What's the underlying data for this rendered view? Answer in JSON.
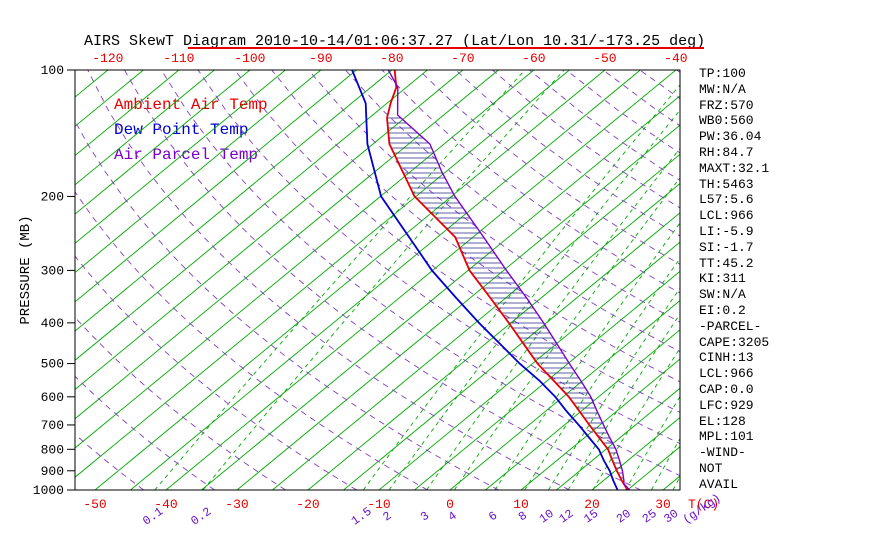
{
  "title": "AIRS SkewT Diagram 2010-10-14/01:06:37.27 (Lat/Lon 10.31/-173.25 deg)",
  "colors": {
    "ambient": "#e60000",
    "dewpoint": "#0000cc",
    "parcel": "#7a00cc",
    "isotherm_green": "#00aa00",
    "adiabat_purple": "#8040c0",
    "mixing_label_purple": "#6611cc",
    "axis_red": "#e60000",
    "hatch": "#2a2a8c",
    "axis_black": "#000000"
  },
  "legend": {
    "items": [
      {
        "label": "Ambient Air Temp",
        "color_key": "ambient"
      },
      {
        "label": "Dew Point Temp",
        "color_key": "dewpoint"
      },
      {
        "label": "Air Parcel Temp",
        "color_key": "parcel"
      }
    ]
  },
  "axes": {
    "pressure_axis_label": "PRESSURE (MB)",
    "pressure_ticks": [
      100,
      200,
      300,
      400,
      500,
      600,
      700,
      800,
      900,
      1000
    ],
    "top_temperature_ticks": [
      -120,
      -110,
      -100,
      -90,
      -80,
      -70,
      -60,
      -50,
      -40
    ],
    "bottom_temperature_ticks": [
      -50,
      -40,
      -30,
      -20,
      -10,
      0,
      10,
      20,
      30
    ],
    "temperature_unit_label": "T(C)",
    "mixing_ratio_ticks": [
      0.1,
      0.2,
      1.5,
      2,
      3,
      4,
      6,
      8,
      10,
      12,
      15,
      20,
      25,
      30
    ],
    "mixing_ratio_unit_label": "(g/kg)"
  },
  "indices_panel": {
    "lines": [
      "TP:100",
      "MW:N/A",
      "FRZ:570",
      "WB0:560",
      "PW:36.04",
      "RH:84.7",
      "MAXT:32.1",
      "TH:5463",
      "L57:5.6",
      "LCL:966",
      "LI:-5.9",
      "SI:-1.7",
      "TT:45.2",
      "KI:311",
      "SW:N/A",
      "EI:0.2",
      "-PARCEL-",
      "CAPE:3205",
      "CINH:13",
      "LCL:966",
      "CAP:0.0",
      "LFC:929",
      "EL:128",
      "MPL:101",
      "-WIND-",
      "NOT",
      "AVAIL"
    ]
  },
  "chart_data": {
    "type": "line",
    "chart_kind": "skew-t log-p thermodynamic diagram",
    "title": "AIRS SkewT Diagram 2010-10-14/01:06:37.27 (Lat/Lon 10.31/-173.25 deg)",
    "ylabel": "PRESSURE (MB)",
    "xlabel": "T(C)",
    "y_scale": "log",
    "ylim": [
      100,
      1000
    ],
    "y_ticks": [
      100,
      200,
      300,
      400,
      500,
      600,
      700,
      800,
      900,
      1000
    ],
    "x_top_ticks_c": [
      -120,
      -110,
      -100,
      -90,
      -80,
      -70,
      -60,
      -50,
      -40
    ],
    "x_bottom_ticks_c": [
      -50,
      -40,
      -30,
      -20,
      -10,
      0,
      10,
      20,
      30
    ],
    "series": [
      {
        "name": "Ambient Air Temp",
        "color": "#e60000",
        "points_p_t": [
          [
            1000,
            25.0
          ],
          [
            950,
            22.6
          ],
          [
            900,
            20.2
          ],
          [
            850,
            17.8
          ],
          [
            800,
            15.3
          ],
          [
            750,
            12.0
          ],
          [
            700,
            8.5
          ],
          [
            650,
            4.8
          ],
          [
            600,
            0.8
          ],
          [
            550,
            -4.0
          ],
          [
            500,
            -9.3
          ],
          [
            450,
            -14.5
          ],
          [
            400,
            -20.3
          ],
          [
            350,
            -27.0
          ],
          [
            300,
            -34.8
          ],
          [
            250,
            -42.5
          ],
          [
            200,
            -55.2
          ],
          [
            175,
            -61.0
          ],
          [
            150,
            -67.7
          ],
          [
            130,
            -72.5
          ],
          [
            120,
            -74.5
          ],
          [
            110,
            -76.4
          ],
          [
            100,
            -79.6
          ]
        ]
      },
      {
        "name": "Dew Point Temp",
        "color": "#0000cc",
        "points_p_t": [
          [
            1000,
            23.6
          ],
          [
            950,
            21.4
          ],
          [
            900,
            19.2
          ],
          [
            850,
            16.6
          ],
          [
            800,
            14.0
          ],
          [
            750,
            10.6
          ],
          [
            700,
            7.0
          ],
          [
            650,
            3.0
          ],
          [
            600,
            -1.1
          ],
          [
            550,
            -6.0
          ],
          [
            500,
            -11.8
          ],
          [
            450,
            -17.8
          ],
          [
            400,
            -24.5
          ],
          [
            350,
            -31.8
          ],
          [
            300,
            -40.1
          ],
          [
            250,
            -49.0
          ],
          [
            200,
            -59.9
          ],
          [
            150,
            -70.8
          ],
          [
            120,
            -78.0
          ],
          [
            100,
            -85.6
          ]
        ]
      },
      {
        "name": "Air Parcel Temp",
        "color": "#7a00cc",
        "points_p_t": [
          [
            1000,
            25.3
          ],
          [
            966,
            23.4
          ],
          [
            950,
            22.9
          ],
          [
            900,
            21.0
          ],
          [
            850,
            18.8
          ],
          [
            800,
            16.4
          ],
          [
            750,
            13.5
          ],
          [
            700,
            10.5
          ],
          [
            650,
            7.3
          ],
          [
            600,
            3.9
          ],
          [
            550,
            -0.2
          ],
          [
            500,
            -4.8
          ],
          [
            450,
            -9.8
          ],
          [
            400,
            -15.4
          ],
          [
            350,
            -21.9
          ],
          [
            300,
            -29.6
          ],
          [
            250,
            -38.5
          ],
          [
            200,
            -49.5
          ],
          [
            175,
            -55.5
          ],
          [
            150,
            -62.0
          ],
          [
            128,
            -71.5
          ],
          [
            110,
            -76.2
          ],
          [
            100,
            -80.5
          ]
        ]
      }
    ],
    "cape_hatch": {
      "between": [
        "Ambient Air Temp",
        "Air Parcel Temp"
      ],
      "pressure_range_mb": [
        950,
        130
      ]
    },
    "background": {
      "isotherms_c": {
        "min": -160,
        "max": 45,
        "step": 5
      },
      "dry_adiabats_k": {
        "min": 220,
        "max": 450,
        "step": 10
      },
      "mixing_ratio_g_kg": [
        0.1,
        0.2,
        1.5,
        2,
        3,
        4,
        6,
        8,
        10,
        12,
        15,
        20,
        25,
        30
      ]
    },
    "legend_position": "upper-left inside plot",
    "grid": "skewed isotherms (solid green), mixing ratio (dashed green), dry adiabats (dashed purple)"
  }
}
